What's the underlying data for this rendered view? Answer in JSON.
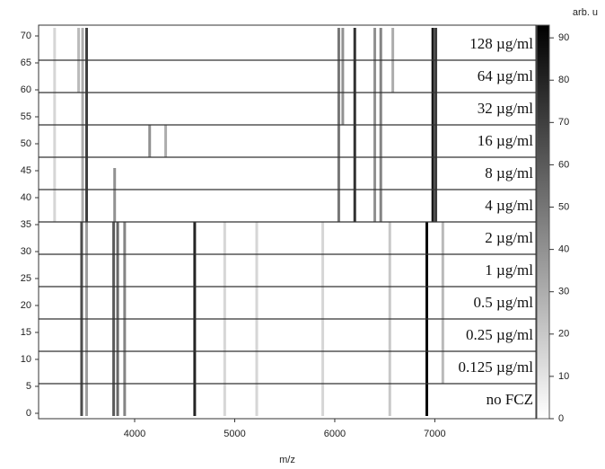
{
  "chart_data": {
    "type": "gel",
    "xlabel": "m/z",
    "xlim": [
      3040,
      8010
    ],
    "xticks": [
      4000,
      5000,
      6000,
      7000
    ],
    "ylim": [
      -1,
      72
    ],
    "yticks": [
      0,
      5,
      10,
      15,
      20,
      25,
      30,
      35,
      40,
      45,
      50,
      55,
      60,
      65,
      70
    ],
    "colorbar_label": "arb. u",
    "clim": [
      0,
      93
    ],
    "cticks": [
      0,
      10,
      20,
      30,
      40,
      50,
      60,
      70,
      80,
      90
    ],
    "groups": [
      {
        "label": "no FCZ",
        "rows": [
          0,
          5
        ]
      },
      {
        "label": "0.125 µg/ml",
        "rows": [
          6,
          11
        ]
      },
      {
        "label": "0.25 µg/ml",
        "rows": [
          12,
          17
        ]
      },
      {
        "label": "0.5 µg/ml",
        "rows": [
          18,
          23
        ]
      },
      {
        "label": "1 µg/ml",
        "rows": [
          24,
          29
        ]
      },
      {
        "label": "2 µg/ml",
        "rows": [
          30,
          35
        ]
      },
      {
        "label": "4 µg/ml",
        "rows": [
          36,
          41
        ]
      },
      {
        "label": "8 µg/ml",
        "rows": [
          42,
          47
        ]
      },
      {
        "label": "16 µg/ml",
        "rows": [
          48,
          53
        ]
      },
      {
        "label": "32 µg/ml",
        "rows": [
          54,
          59
        ]
      },
      {
        "label": "64 µg/ml",
        "rows": [
          60,
          65
        ]
      },
      {
        "label": "128 µg/ml",
        "rows": [
          66,
          71
        ]
      }
    ],
    "peaks": [
      {
        "mz": 3520,
        "rows": [
          36,
          71
        ],
        "intensity": 70
      },
      {
        "mz": 3480,
        "rows": [
          36,
          71
        ],
        "intensity": 30
      },
      {
        "mz": 3440,
        "rows": [
          60,
          71
        ],
        "intensity": 25
      },
      {
        "mz": 3200,
        "rows": [
          36,
          71
        ],
        "intensity": 15
      },
      {
        "mz": 3800,
        "rows": [
          36,
          45
        ],
        "intensity": 40
      },
      {
        "mz": 6040,
        "rows": [
          36,
          71
        ],
        "intensity": 50
      },
      {
        "mz": 6080,
        "rows": [
          54,
          71
        ],
        "intensity": 40
      },
      {
        "mz": 6200,
        "rows": [
          36,
          71
        ],
        "intensity": 75
      },
      {
        "mz": 6400,
        "rows": [
          36,
          71
        ],
        "intensity": 40
      },
      {
        "mz": 6460,
        "rows": [
          36,
          71
        ],
        "intensity": 45
      },
      {
        "mz": 6580,
        "rows": [
          60,
          71
        ],
        "intensity": 30
      },
      {
        "mz": 6980,
        "rows": [
          36,
          71
        ],
        "intensity": 85
      },
      {
        "mz": 7010,
        "rows": [
          36,
          71
        ],
        "intensity": 70
      },
      {
        "mz": 4150,
        "rows": [
          48,
          53
        ],
        "intensity": 40
      },
      {
        "mz": 4310,
        "rows": [
          48,
          53
        ],
        "intensity": 30
      },
      {
        "mz": 3470,
        "rows": [
          0,
          35
        ],
        "intensity": 65
      },
      {
        "mz": 3520,
        "rows": [
          0,
          35
        ],
        "intensity": 35
      },
      {
        "mz": 3790,
        "rows": [
          0,
          35
        ],
        "intensity": 60
      },
      {
        "mz": 3830,
        "rows": [
          0,
          35
        ],
        "intensity": 55
      },
      {
        "mz": 3900,
        "rows": [
          0,
          35
        ],
        "intensity": 45
      },
      {
        "mz": 4600,
        "rows": [
          0,
          35
        ],
        "intensity": 80
      },
      {
        "mz": 4900,
        "rows": [
          0,
          35
        ],
        "intensity": 15
      },
      {
        "mz": 5220,
        "rows": [
          0,
          35
        ],
        "intensity": 15
      },
      {
        "mz": 5880,
        "rows": [
          0,
          35
        ],
        "intensity": 15
      },
      {
        "mz": 6550,
        "rows": [
          0,
          35
        ],
        "intensity": 20
      },
      {
        "mz": 6920,
        "rows": [
          0,
          35
        ],
        "intensity": 90
      },
      {
        "mz": 7080,
        "rows": [
          6,
          35
        ],
        "intensity": 25
      }
    ]
  }
}
